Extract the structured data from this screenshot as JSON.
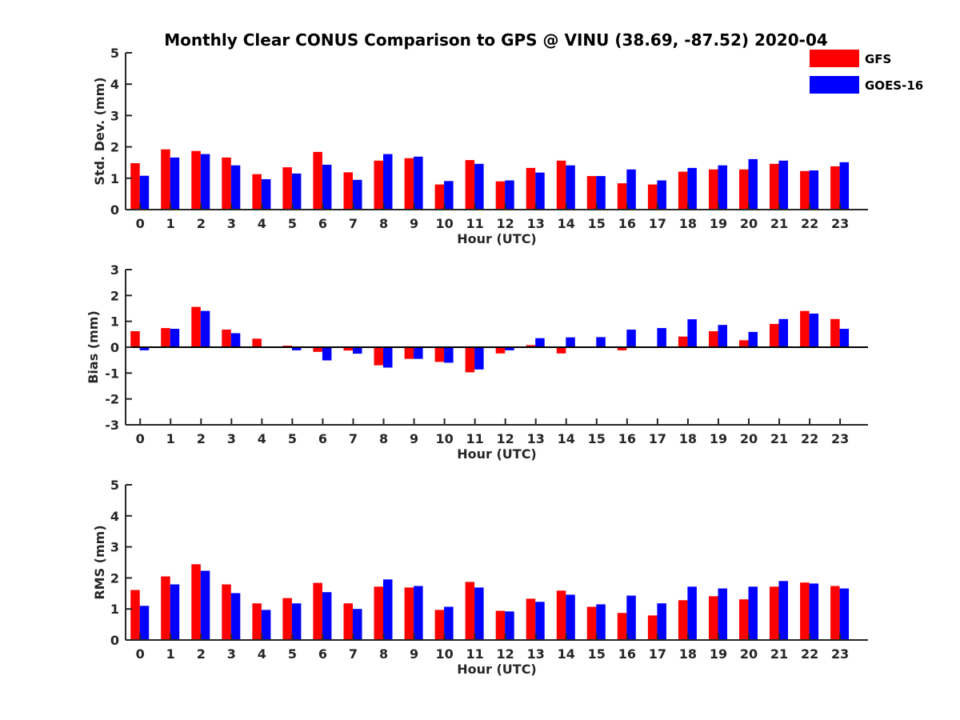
{
  "chart_data": {
    "type": "bar",
    "title": "Monthly Clear CONUS Comparison to GPS @ VINU (38.69, -87.52) 2020-04",
    "legend": {
      "placement": "top-right",
      "entries": [
        "GFS",
        "GOES-16"
      ]
    },
    "colors": {
      "GFS": "#ff0000",
      "GOES-16": "#0000ff"
    },
    "categories": [
      "0",
      "1",
      "2",
      "3",
      "4",
      "5",
      "6",
      "7",
      "8",
      "9",
      "10",
      "11",
      "12",
      "13",
      "14",
      "15",
      "16",
      "17",
      "18",
      "19",
      "20",
      "21",
      "22",
      "23"
    ],
    "panels": [
      {
        "ylabel": "Std. Dev. (mm)",
        "xlabel": "Hour (UTC)",
        "ylim": [
          0,
          5
        ],
        "yticks": [
          0,
          1,
          2,
          3,
          4,
          5
        ],
        "series": [
          {
            "name": "GFS",
            "values": [
              1.48,
              1.92,
              1.87,
              1.66,
              1.13,
              1.35,
              1.84,
              1.19,
              1.56,
              1.64,
              0.8,
              1.58,
              0.9,
              1.33,
              1.56,
              1.07,
              0.84,
              0.8,
              1.21,
              1.28,
              1.28,
              1.46,
              1.23,
              1.38
            ]
          },
          {
            "name": "GOES-16",
            "values": [
              1.08,
              1.66,
              1.77,
              1.41,
              0.97,
              1.15,
              1.43,
              0.95,
              1.77,
              1.69,
              0.91,
              1.46,
              0.93,
              1.18,
              1.41,
              1.07,
              1.28,
              0.93,
              1.33,
              1.41,
              1.61,
              1.56,
              1.25,
              1.51
            ]
          }
        ]
      },
      {
        "ylabel": "Bias (mm)",
        "xlabel": "Hour (UTC)",
        "ylim": [
          -3,
          3
        ],
        "yticks": [
          -3,
          -2,
          -1,
          0,
          1,
          2,
          3
        ],
        "series": [
          {
            "name": "GFS",
            "values": [
              0.62,
              0.74,
              1.56,
              0.68,
              0.33,
              0.06,
              -0.18,
              -0.13,
              -0.7,
              -0.45,
              -0.57,
              -0.97,
              -0.24,
              0.08,
              -0.24,
              0.0,
              -0.12,
              0.0,
              0.41,
              0.62,
              0.27,
              0.9,
              1.4,
              1.09
            ]
          },
          {
            "name": "GOES-16",
            "values": [
              -0.12,
              0.71,
              1.4,
              0.54,
              0.03,
              -0.12,
              -0.51,
              -0.25,
              -0.79,
              -0.45,
              -0.6,
              -0.86,
              -0.12,
              0.35,
              0.38,
              0.39,
              0.68,
              0.74,
              1.08,
              0.86,
              0.59,
              1.09,
              1.3,
              0.71
            ]
          }
        ]
      },
      {
        "ylabel": "RMS (mm)",
        "xlabel": "Hour (UTC)",
        "ylim": [
          0,
          5
        ],
        "yticks": [
          0,
          1,
          2,
          3,
          4,
          5
        ],
        "series": [
          {
            "name": "GFS",
            "values": [
              1.61,
              2.05,
              2.44,
              1.79,
              1.18,
              1.35,
              1.84,
              1.18,
              1.72,
              1.69,
              0.97,
              1.87,
              0.94,
              1.33,
              1.59,
              1.07,
              0.87,
              0.79,
              1.28,
              1.41,
              1.31,
              1.72,
              1.85,
              1.74
            ]
          },
          {
            "name": "GOES-16",
            "values": [
              1.1,
              1.79,
              2.23,
              1.51,
              0.97,
              1.18,
              1.54,
              1.0,
              1.95,
              1.74,
              1.07,
              1.69,
              0.92,
              1.23,
              1.46,
              1.15,
              1.43,
              1.18,
              1.72,
              1.66,
              1.72,
              1.9,
              1.82,
              1.66
            ]
          }
        ]
      }
    ]
  }
}
